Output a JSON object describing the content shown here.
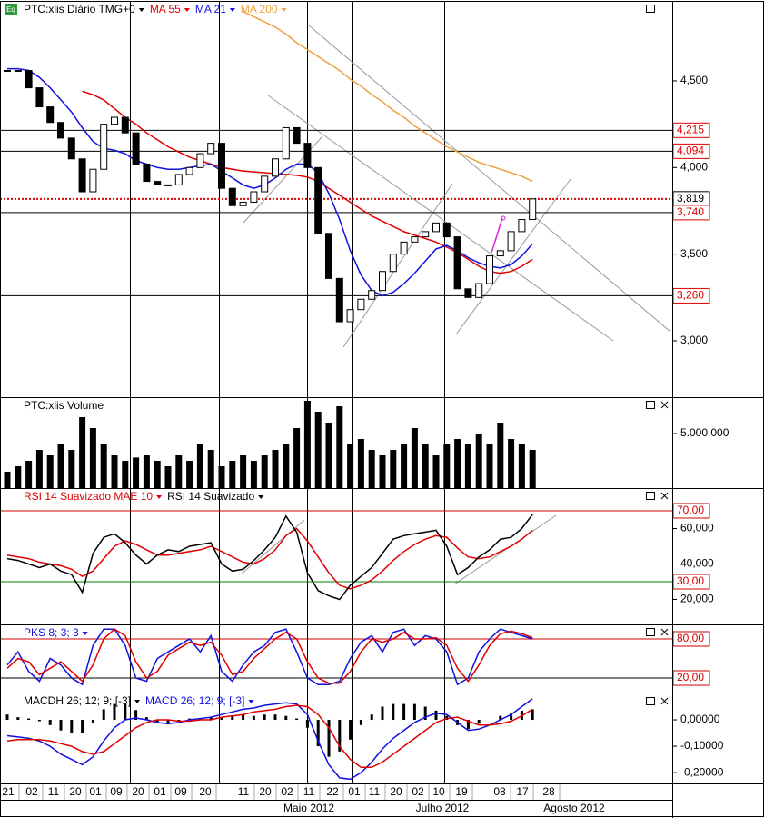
{
  "badge": "Eq",
  "chart_data": [
    {
      "type": "candlestick",
      "title": "PTC:xlis Diário TMG+0",
      "color_up": "#ffffff",
      "color_down": "#000000",
      "values": [
        4560,
        4560,
        4460,
        4350,
        4260,
        4170,
        4050,
        3860,
        3990,
        4250,
        4290,
        4200,
        4020,
        3920,
        3900,
        3900,
        3960,
        4000,
        4080,
        4140,
        3880,
        3780,
        3800,
        3860,
        3950,
        4050,
        4230,
        4140,
        4000,
        3620,
        3360,
        3110,
        3180,
        3240,
        3290,
        3400,
        3500,
        3570,
        3600,
        3630,
        3680,
        3600,
        3300,
        3250,
        3330,
        3490,
        3520,
        3630,
        3700,
        3819
      ],
      "series": [
        {
          "name": "MA 55",
          "color": "#e00000",
          "values": [
            null,
            null,
            null,
            null,
            null,
            null,
            null,
            4440,
            4420,
            4390,
            4340,
            4290,
            4250,
            4200,
            4160,
            4120,
            4090,
            4060,
            4040,
            4020,
            4000,
            3990,
            3980,
            3975,
            3970,
            3965,
            3960,
            3955,
            3945,
            3920,
            3880,
            3840,
            3800,
            3760,
            3720,
            3690,
            3660,
            3630,
            3610,
            3590,
            3570,
            3540,
            3510,
            3470,
            3430,
            3400,
            3390,
            3400,
            3430,
            3470
          ]
        },
        {
          "name": "MA 21",
          "color": "#1010e0",
          "values": [
            4570,
            4570,
            4560,
            4520,
            4460,
            4390,
            4320,
            4230,
            4150,
            4110,
            4100,
            4080,
            4040,
            4020,
            4000,
            3990,
            3990,
            4000,
            4010,
            4020,
            3980,
            3940,
            3900,
            3880,
            3900,
            3940,
            3990,
            4020,
            4020,
            3970,
            3850,
            3700,
            3520,
            3380,
            3290,
            3260,
            3280,
            3330,
            3390,
            3460,
            3530,
            3550,
            3520,
            3480,
            3450,
            3430,
            3420,
            3440,
            3490,
            3560
          ]
        },
        {
          "name": "MA 200",
          "color": "#f0a040",
          "values": [
            null,
            null,
            null,
            null,
            null,
            null,
            null,
            null,
            null,
            null,
            null,
            null,
            null,
            null,
            null,
            null,
            null,
            null,
            null,
            null,
            null,
            null,
            4900,
            4870,
            4840,
            4810,
            4770,
            4720,
            4680,
            4640,
            4600,
            4560,
            4510,
            4470,
            4420,
            4380,
            4330,
            4290,
            4240,
            4200,
            4160,
            4120,
            4090,
            4060,
            4030,
            4010,
            3990,
            3970,
            3950,
            3920
          ]
        }
      ],
      "ylim": [
        2675,
        4956
      ],
      "yticks": [
        {
          "value": 3000,
          "label": "3,000"
        },
        {
          "value": 3500,
          "label": "3,500"
        },
        {
          "value": 4000,
          "label": "4,000"
        },
        {
          "value": 4500,
          "label": "4,500"
        }
      ],
      "levels": [
        {
          "value": 4215,
          "label": "4,215",
          "line_color": "#000000",
          "label_color": "#e00000",
          "dashed": false
        },
        {
          "value": 4094,
          "label": "4,094",
          "line_color": "#000000",
          "label_color": "#e00000",
          "dashed": false
        },
        {
          "value": 3819,
          "label": "3,819",
          "line_color": "#e00000",
          "label_color": "#000000",
          "dashed": true
        },
        {
          "value": 3740,
          "label": "3,740",
          "line_color": "#000000",
          "label_color": "#e00000",
          "dashed": false
        },
        {
          "value": 3260,
          "label": "3,260",
          "line_color": "#000000",
          "label_color": "#e00000",
          "dashed": false
        }
      ]
    },
    {
      "type": "bar",
      "title": "PTC:xlis Volume",
      "color": "#000000",
      "values": [
        1500000,
        2000000,
        2500000,
        3500000,
        3000000,
        4000000,
        3500000,
        6500000,
        5500000,
        4000000,
        3000000,
        2500000,
        2800000,
        3000000,
        2500000,
        2000000,
        3000000,
        2500000,
        4000000,
        3500000,
        2000000,
        2500000,
        3000000,
        2500000,
        3000000,
        3500000,
        4000000,
        5500000,
        8000000,
        7000000,
        6000000,
        7500000,
        4000000,
        4500000,
        3500000,
        3000000,
        3500000,
        4000000,
        5500000,
        4000000,
        3000000,
        4000000,
        4500000,
        4000000,
        5000000,
        4000000,
        6000000,
        4500000,
        4000000,
        3500000
      ],
      "ylim": [
        0,
        8250000
      ],
      "yticks": [
        {
          "value": 5000000,
          "label": "5.000.000"
        }
      ]
    },
    {
      "type": "line",
      "series": [
        {
          "name": "RSI 14 Suavizado MAE 10",
          "color": "#e00000",
          "values": [
            45,
            44,
            43,
            41,
            40,
            39,
            37,
            33,
            36,
            43,
            50,
            53,
            51,
            48,
            45,
            45,
            46,
            47,
            48,
            50,
            47,
            44,
            41,
            40,
            43,
            48,
            56,
            60,
            53,
            44,
            35,
            28,
            26,
            28,
            31,
            36,
            42,
            47,
            51,
            54,
            56,
            55,
            49,
            44,
            43,
            44,
            47,
            50,
            54,
            59
          ]
        },
        {
          "name": "RSI 14 Suavizado",
          "color": "#000000",
          "values": [
            43,
            42,
            40,
            38,
            40,
            36,
            34,
            24,
            46,
            55,
            57,
            52,
            45,
            40,
            45,
            48,
            47,
            50,
            51,
            52,
            40,
            36,
            37,
            42,
            48,
            55,
            67,
            58,
            35,
            25,
            22,
            20,
            28,
            33,
            38,
            46,
            54,
            56,
            57,
            58,
            59,
            50,
            34,
            38,
            44,
            48,
            54,
            55,
            60,
            68
          ]
        }
      ],
      "ylim": [
        5.9,
        82.3
      ],
      "yticks": [
        {
          "value": 20,
          "label": "20,000"
        },
        {
          "value": 40,
          "label": "40,000"
        },
        {
          "value": 60,
          "label": "60,000"
        }
      ],
      "levels": [
        {
          "value": 70,
          "label": "70,00",
          "line_color": "#d00000",
          "label_color": "#d00000",
          "dashed": false
        },
        {
          "value": 30,
          "label": "30,00",
          "line_color": "#008000",
          "label_color": "#d00000",
          "dashed": false
        }
      ]
    },
    {
      "type": "line",
      "series": [
        {
          "name": "PKS 8; 3; 3",
          "color": "#1010e0",
          "values": [
            40,
            60,
            30,
            15,
            50,
            40,
            20,
            10,
            70,
            95,
            95,
            70,
            20,
            15,
            50,
            60,
            70,
            80,
            60,
            85,
            30,
            15,
            40,
            60,
            70,
            90,
            95,
            60,
            20,
            10,
            10,
            15,
            50,
            75,
            85,
            60,
            90,
            95,
            70,
            85,
            80,
            60,
            10,
            20,
            60,
            80,
            95,
            90,
            85,
            80
          ]
        },
        {
          "color": "#e00000",
          "values": [
            35,
            50,
            45,
            25,
            35,
            45,
            30,
            15,
            40,
            80,
            95,
            85,
            45,
            20,
            30,
            55,
            65,
            75,
            70,
            75,
            55,
            25,
            30,
            50,
            65,
            80,
            90,
            80,
            45,
            20,
            12,
            12,
            30,
            60,
            80,
            75,
            80,
            90,
            80,
            80,
            82,
            70,
            35,
            15,
            40,
            70,
            88,
            92,
            88,
            82
          ]
        }
      ],
      "ylim": [
        -2.3,
        100.9
      ],
      "levels": [
        {
          "value": 80,
          "label": "80,00",
          "line_color": "#d00000",
          "label_color": "#d00000",
          "dashed": false
        },
        {
          "value": 20,
          "label": "20,00",
          "line_color": "#000000",
          "label_color": "#d00000",
          "dashed": false
        }
      ]
    },
    {
      "type": "macd",
      "series": [
        {
          "name": "MACDH 26; 12; 9; [-3]",
          "color": "#000000",
          "kind": "bar",
          "values": [
            0.02,
            0.01,
            0.005,
            -0.005,
            -0.02,
            -0.04,
            -0.05,
            -0.05,
            -0.01,
            0.04,
            0.06,
            0.06,
            0.037,
            0.01,
            -0.01,
            -0.015,
            -0.005,
            0.005,
            0.005,
            0.01,
            0.01,
            0.015,
            0.02,
            0.015,
            0.02,
            0.02,
            0.015,
            0.005,
            -0.03,
            -0.1,
            -0.14,
            -0.12,
            -0.075,
            -0.02,
            0.02,
            0.05,
            0.06,
            0.06,
            0.06,
            0.05,
            0.035,
            0.015,
            -0.02,
            -0.035,
            -0.015,
            0.0,
            0.015,
            0.025,
            0.035,
            0.04
          ]
        },
        {
          "name": "MACD 26; 12; 9; [-3]",
          "color": "#1010e0",
          "kind": "line",
          "values": [
            -0.06,
            -0.065,
            -0.07,
            -0.08,
            -0.1,
            -0.13,
            -0.15,
            -0.17,
            -0.14,
            -0.08,
            -0.03,
            0.0,
            0.007,
            0.0,
            -0.01,
            -0.015,
            -0.01,
            0.0,
            0.005,
            0.01,
            0.02,
            0.03,
            0.04,
            0.045,
            0.055,
            0.06,
            0.065,
            0.06,
            0.02,
            -0.08,
            -0.17,
            -0.22,
            -0.225,
            -0.2,
            -0.16,
            -0.11,
            -0.07,
            -0.04,
            -0.01,
            0.01,
            0.025,
            0.02,
            -0.01,
            -0.04,
            -0.035,
            -0.02,
            0.0,
            0.02,
            0.05,
            0.08
          ]
        },
        {
          "color": "#e00000",
          "kind": "line",
          "values": [
            -0.08,
            -0.075,
            -0.075,
            -0.075,
            -0.08,
            -0.09,
            -0.1,
            -0.12,
            -0.13,
            -0.12,
            -0.09,
            -0.06,
            -0.03,
            -0.01,
            0.0,
            0.0,
            -0.005,
            -0.005,
            0.0,
            0.0,
            0.01,
            0.015,
            0.02,
            0.03,
            0.035,
            0.04,
            0.05,
            0.055,
            0.05,
            0.02,
            -0.03,
            -0.1,
            -0.15,
            -0.18,
            -0.18,
            -0.16,
            -0.13,
            -0.1,
            -0.07,
            -0.04,
            -0.01,
            0.005,
            0.01,
            -0.005,
            -0.02,
            -0.02,
            -0.015,
            -0.005,
            0.015,
            0.04
          ]
        }
      ],
      "ylim": [
        -0.241,
        0.1
      ],
      "yticks": [
        {
          "value": 0,
          "label": "0,00000"
        },
        {
          "value": -0.1,
          "label": "-0,10000"
        },
        {
          "value": -0.2,
          "label": "-0,20000"
        }
      ]
    }
  ],
  "x_axis": {
    "days": [
      "21",
      "02",
      "11",
      "20",
      "01",
      "09",
      "20",
      "01",
      "09",
      "20",
      "11",
      "20",
      "02",
      "11",
      "22",
      "01",
      "11",
      "20",
      "02",
      "10",
      "19",
      "08",
      "17",
      "28"
    ],
    "months": [
      "Maio 2012",
      "Julho 2012",
      "Agosto 2012"
    ]
  }
}
